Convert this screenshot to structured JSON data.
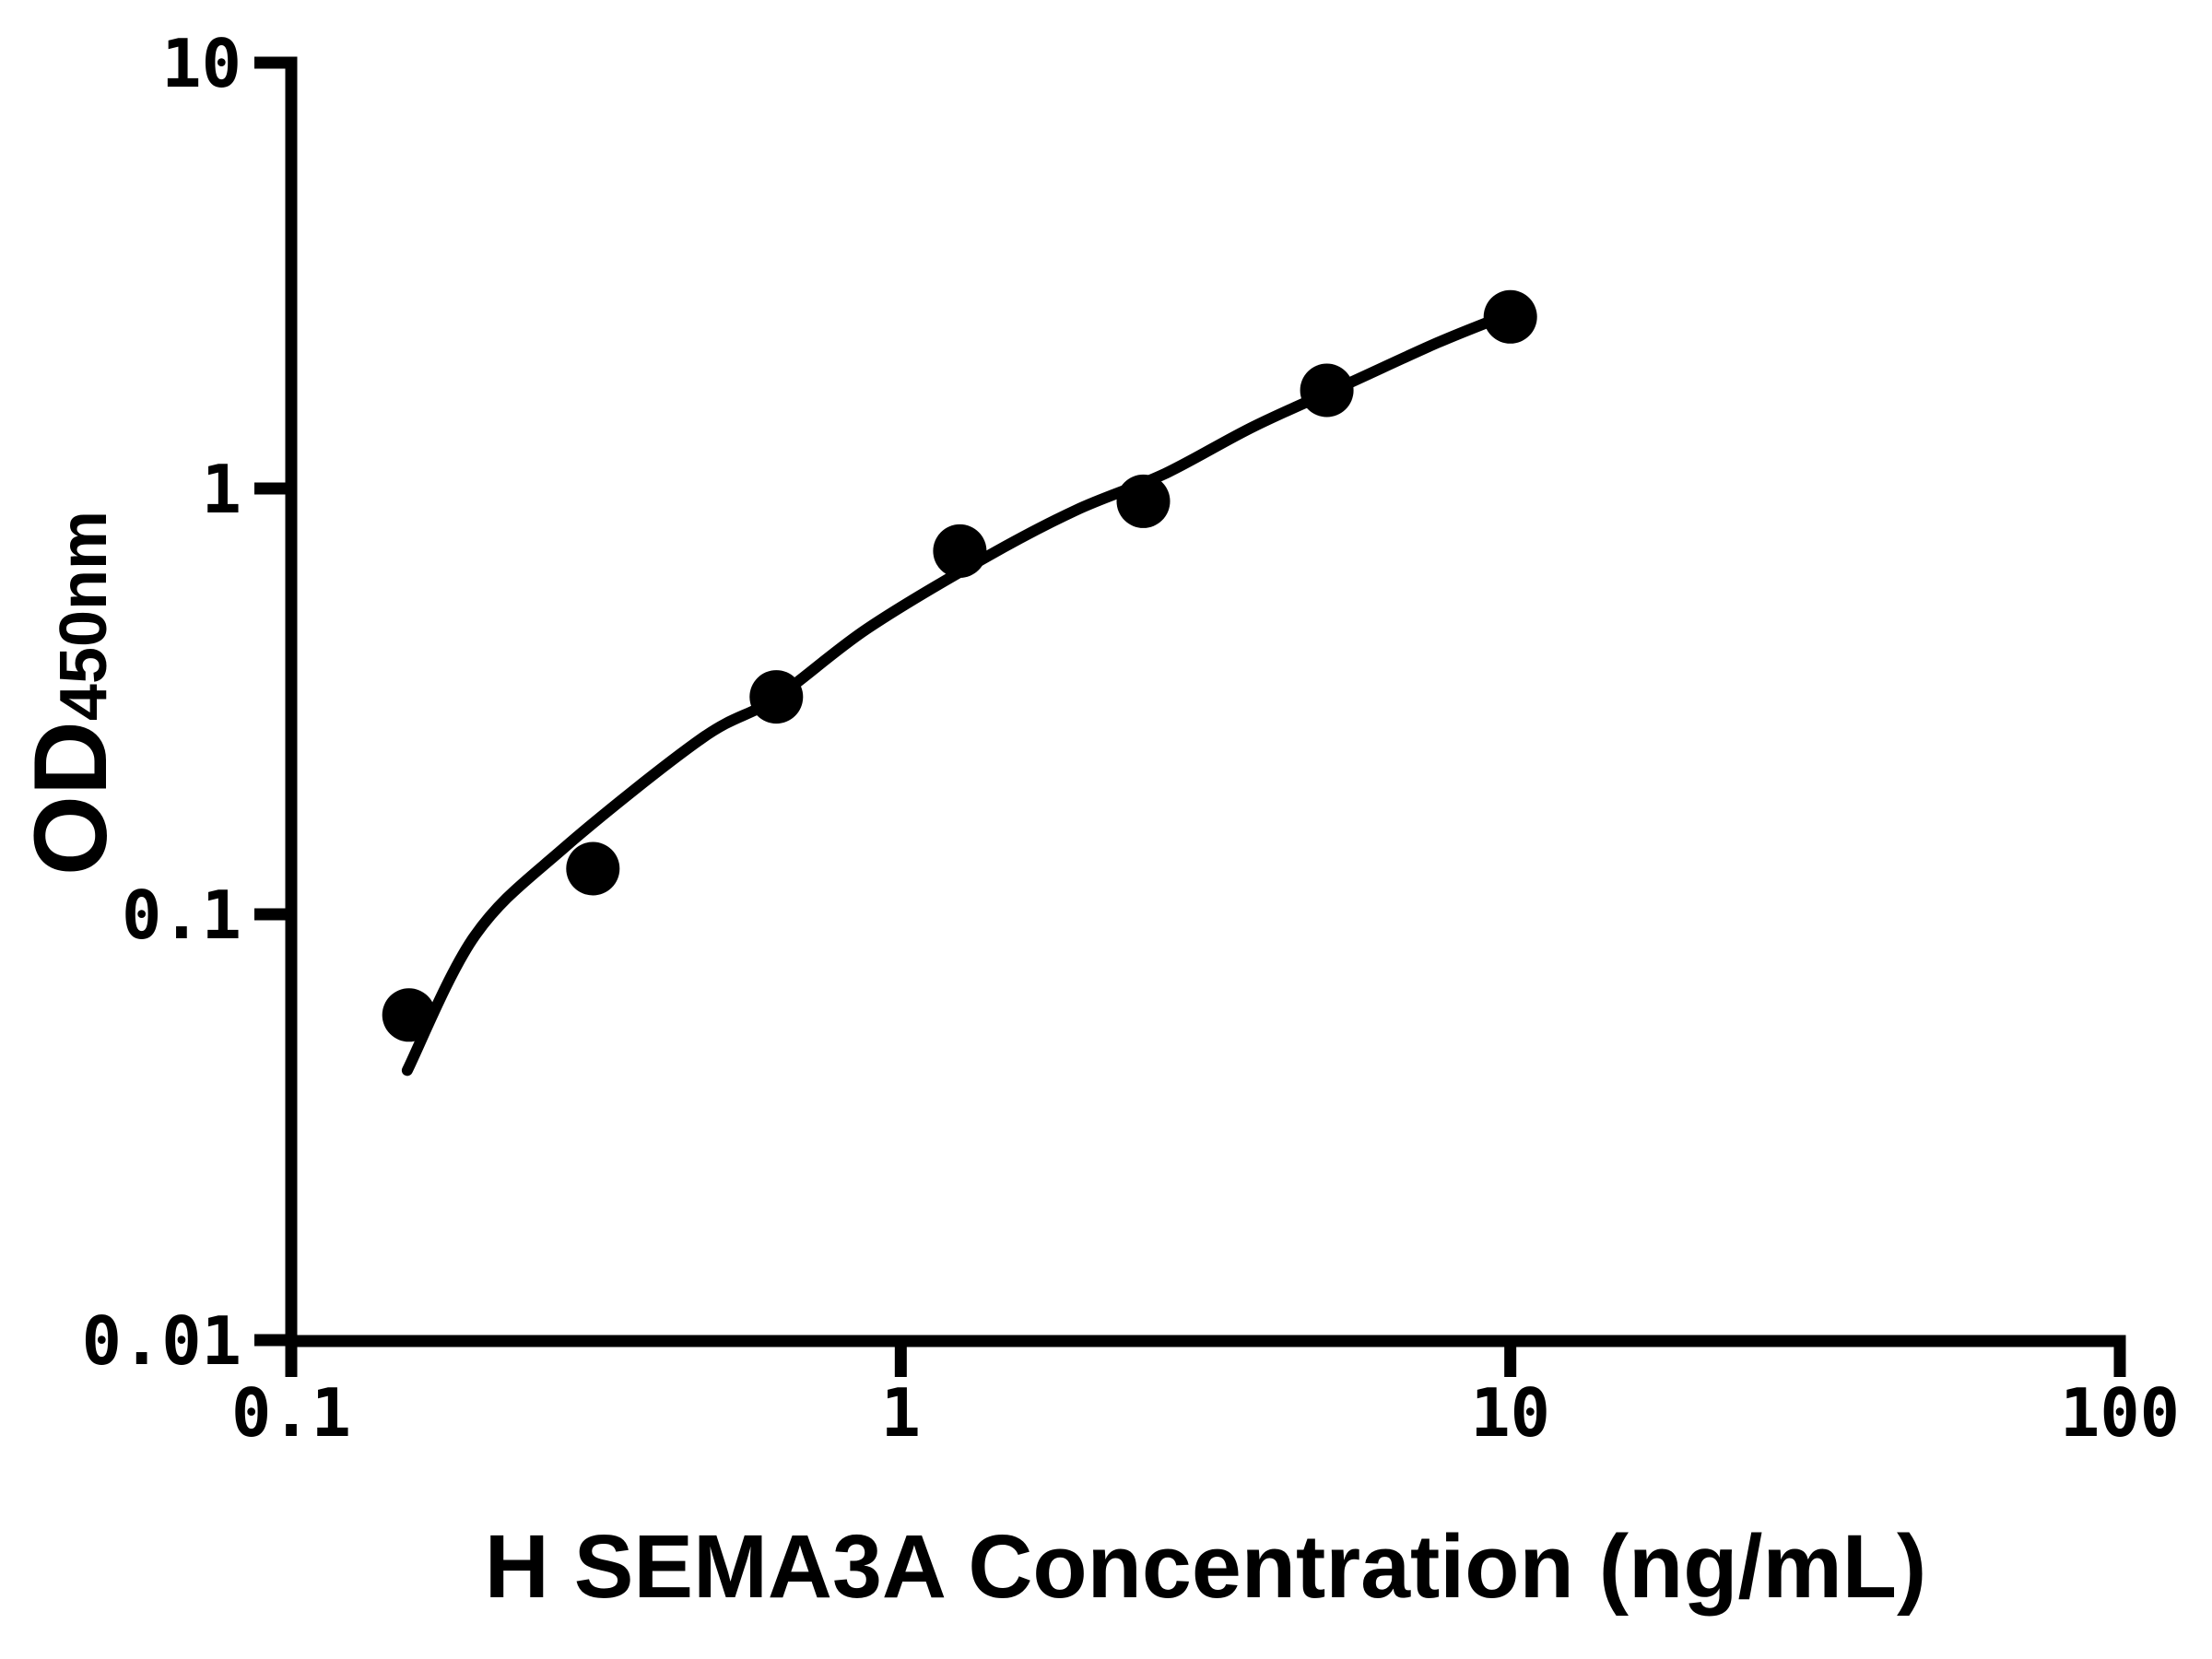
{
  "figure": {
    "background_color": "#ffffff",
    "ink_color": "#000000"
  },
  "chart_data": {
    "type": "scatter",
    "title": "",
    "xlabel": "H SEMA3A Concentration (ng/mL)",
    "ylabel": "OD",
    "ylabel_subscript": "450nm",
    "x_scale": "log",
    "y_scale": "log",
    "xlim": [
      0.1,
      100
    ],
    "ylim": [
      0.01,
      10
    ],
    "grid": false,
    "legend": false,
    "x_ticks": [
      {
        "value": 0.1,
        "label": "0.1"
      },
      {
        "value": 1,
        "label": "1"
      },
      {
        "value": 10,
        "label": "10"
      },
      {
        "value": 100,
        "label": "100"
      }
    ],
    "y_ticks": [
      {
        "value": 10,
        "label": "10"
      },
      {
        "value": 1,
        "label": "1"
      },
      {
        "value": 0.1,
        "label": "0.1"
      },
      {
        "value": 0.01,
        "label": "0.01"
      }
    ],
    "series": [
      {
        "name": "standard-curve-points",
        "marker": "filled-circle",
        "color": "#000000",
        "points": [
          {
            "x": 0.156,
            "y": 0.058
          },
          {
            "x": 0.3125,
            "y": 0.128
          },
          {
            "x": 0.625,
            "y": 0.324
          },
          {
            "x": 1.25,
            "y": 0.713
          },
          {
            "x": 2.5,
            "y": 0.933
          },
          {
            "x": 5,
            "y": 1.7
          },
          {
            "x": 10,
            "y": 2.53
          }
        ]
      }
    ],
    "fit_curve": {
      "name": "4pl-fit-line",
      "color": "#000000",
      "points": [
        {
          "x": 0.155,
          "y": 0.043
        },
        {
          "x": 0.2,
          "y": 0.089
        },
        {
          "x": 0.28,
          "y": 0.143
        },
        {
          "x": 0.47,
          "y": 0.258
        },
        {
          "x": 0.62,
          "y": 0.32
        },
        {
          "x": 0.88,
          "y": 0.468
        },
        {
          "x": 1.38,
          "y": 0.69
        },
        {
          "x": 1.94,
          "y": 0.89
        },
        {
          "x": 2.7,
          "y": 1.08
        },
        {
          "x": 3.8,
          "y": 1.4
        },
        {
          "x": 5.4,
          "y": 1.76
        },
        {
          "x": 7.6,
          "y": 2.2
        },
        {
          "x": 9.68,
          "y": 2.53
        }
      ]
    }
  }
}
